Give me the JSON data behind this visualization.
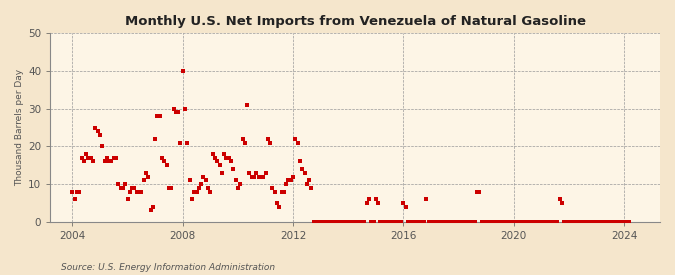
{
  "title": "Monthly U.S. Net Imports from Venezuela of Natural Gasoline",
  "ylabel": "Thousand Barrels per Day",
  "source": "Source: U.S. Energy Information Administration",
  "background_color": "#f5e6cc",
  "plot_background_color": "#fdf5e6",
  "marker_color": "#cc0000",
  "marker_size": 3,
  "ylim": [
    0,
    50
  ],
  "yticks": [
    0,
    10,
    20,
    30,
    40,
    50
  ],
  "xlim": [
    2003.2,
    2025.3
  ],
  "xticks": [
    2004,
    2008,
    2012,
    2016,
    2020,
    2024
  ],
  "data": [
    [
      2004.0,
      8
    ],
    [
      2004.083,
      6
    ],
    [
      2004.167,
      8
    ],
    [
      2004.25,
      8
    ],
    [
      2004.333,
      17
    ],
    [
      2004.417,
      16
    ],
    [
      2004.5,
      18
    ],
    [
      2004.583,
      17
    ],
    [
      2004.667,
      17
    ],
    [
      2004.75,
      16
    ],
    [
      2004.833,
      25
    ],
    [
      2004.917,
      24
    ],
    [
      2005.0,
      23
    ],
    [
      2005.083,
      20
    ],
    [
      2005.167,
      16
    ],
    [
      2005.25,
      17
    ],
    [
      2005.333,
      16
    ],
    [
      2005.417,
      16
    ],
    [
      2005.5,
      17
    ],
    [
      2005.583,
      17
    ],
    [
      2005.667,
      10
    ],
    [
      2005.75,
      9
    ],
    [
      2005.833,
      9
    ],
    [
      2005.917,
      10
    ],
    [
      2006.0,
      6
    ],
    [
      2006.083,
      8
    ],
    [
      2006.167,
      9
    ],
    [
      2006.25,
      9
    ],
    [
      2006.333,
      8
    ],
    [
      2006.417,
      8
    ],
    [
      2006.5,
      8
    ],
    [
      2006.583,
      11
    ],
    [
      2006.667,
      13
    ],
    [
      2006.75,
      12
    ],
    [
      2006.833,
      3
    ],
    [
      2006.917,
      4
    ],
    [
      2007.0,
      22
    ],
    [
      2007.083,
      28
    ],
    [
      2007.167,
      28
    ],
    [
      2007.25,
      17
    ],
    [
      2007.333,
      16
    ],
    [
      2007.417,
      15
    ],
    [
      2007.5,
      9
    ],
    [
      2007.583,
      9
    ],
    [
      2007.667,
      30
    ],
    [
      2007.75,
      29
    ],
    [
      2007.833,
      29
    ],
    [
      2007.917,
      21
    ],
    [
      2008.0,
      40
    ],
    [
      2008.083,
      30
    ],
    [
      2008.167,
      21
    ],
    [
      2008.25,
      11
    ],
    [
      2008.333,
      6
    ],
    [
      2008.417,
      8
    ],
    [
      2008.5,
      8
    ],
    [
      2008.583,
      9
    ],
    [
      2008.667,
      10
    ],
    [
      2008.75,
      12
    ],
    [
      2008.833,
      11
    ],
    [
      2008.917,
      9
    ],
    [
      2009.0,
      8
    ],
    [
      2009.083,
      18
    ],
    [
      2009.167,
      17
    ],
    [
      2009.25,
      16
    ],
    [
      2009.333,
      15
    ],
    [
      2009.417,
      13
    ],
    [
      2009.5,
      18
    ],
    [
      2009.583,
      17
    ],
    [
      2009.667,
      17
    ],
    [
      2009.75,
      16
    ],
    [
      2009.833,
      14
    ],
    [
      2009.917,
      11
    ],
    [
      2010.0,
      9
    ],
    [
      2010.083,
      10
    ],
    [
      2010.167,
      22
    ],
    [
      2010.25,
      21
    ],
    [
      2010.333,
      31
    ],
    [
      2010.417,
      13
    ],
    [
      2010.5,
      12
    ],
    [
      2010.583,
      12
    ],
    [
      2010.667,
      13
    ],
    [
      2010.75,
      12
    ],
    [
      2010.833,
      12
    ],
    [
      2010.917,
      12
    ],
    [
      2011.0,
      13
    ],
    [
      2011.083,
      22
    ],
    [
      2011.167,
      21
    ],
    [
      2011.25,
      9
    ],
    [
      2011.333,
      8
    ],
    [
      2011.417,
      5
    ],
    [
      2011.5,
      4
    ],
    [
      2011.583,
      8
    ],
    [
      2011.667,
      8
    ],
    [
      2011.75,
      10
    ],
    [
      2011.833,
      11
    ],
    [
      2011.917,
      11
    ],
    [
      2012.0,
      12
    ],
    [
      2012.083,
      22
    ],
    [
      2012.167,
      21
    ],
    [
      2012.25,
      16
    ],
    [
      2012.333,
      14
    ],
    [
      2012.417,
      13
    ],
    [
      2012.5,
      10
    ],
    [
      2012.583,
      11
    ],
    [
      2012.667,
      9
    ],
    [
      2012.75,
      0
    ],
    [
      2012.833,
      0
    ],
    [
      2012.917,
      0
    ],
    [
      2013.0,
      0
    ],
    [
      2013.083,
      0
    ],
    [
      2013.167,
      0
    ],
    [
      2013.25,
      0
    ],
    [
      2013.333,
      0
    ],
    [
      2013.417,
      0
    ],
    [
      2013.5,
      0
    ],
    [
      2013.583,
      0
    ],
    [
      2013.667,
      0
    ],
    [
      2013.75,
      0
    ],
    [
      2013.833,
      0
    ],
    [
      2013.917,
      0
    ],
    [
      2014.0,
      0
    ],
    [
      2014.083,
      0
    ],
    [
      2014.167,
      0
    ],
    [
      2014.25,
      0
    ],
    [
      2014.333,
      0
    ],
    [
      2014.417,
      0
    ],
    [
      2014.5,
      0
    ],
    [
      2014.583,
      0
    ],
    [
      2014.667,
      5
    ],
    [
      2014.75,
      6
    ],
    [
      2014.833,
      0
    ],
    [
      2014.917,
      0
    ],
    [
      2015.0,
      6
    ],
    [
      2015.083,
      5
    ],
    [
      2015.167,
      0
    ],
    [
      2015.25,
      0
    ],
    [
      2015.333,
      0
    ],
    [
      2015.417,
      0
    ],
    [
      2015.5,
      0
    ],
    [
      2015.583,
      0
    ],
    [
      2015.667,
      0
    ],
    [
      2015.75,
      0
    ],
    [
      2015.833,
      0
    ],
    [
      2015.917,
      0
    ],
    [
      2016.0,
      5
    ],
    [
      2016.083,
      4
    ],
    [
      2016.167,
      0
    ],
    [
      2016.25,
      0
    ],
    [
      2016.333,
      0
    ],
    [
      2016.417,
      0
    ],
    [
      2016.5,
      0
    ],
    [
      2016.583,
      0
    ],
    [
      2016.667,
      0
    ],
    [
      2016.75,
      0
    ],
    [
      2016.833,
      6
    ],
    [
      2016.917,
      0
    ],
    [
      2017.0,
      0
    ],
    [
      2017.083,
      0
    ],
    [
      2017.167,
      0
    ],
    [
      2017.25,
      0
    ],
    [
      2017.333,
      0
    ],
    [
      2017.417,
      0
    ],
    [
      2017.5,
      0
    ],
    [
      2017.583,
      0
    ],
    [
      2017.667,
      0
    ],
    [
      2017.75,
      0
    ],
    [
      2017.833,
      0
    ],
    [
      2017.917,
      0
    ],
    [
      2018.0,
      0
    ],
    [
      2018.083,
      0
    ],
    [
      2018.167,
      0
    ],
    [
      2018.25,
      0
    ],
    [
      2018.333,
      0
    ],
    [
      2018.417,
      0
    ],
    [
      2018.5,
      0
    ],
    [
      2018.583,
      0
    ],
    [
      2018.667,
      8
    ],
    [
      2018.75,
      8
    ],
    [
      2018.833,
      0
    ],
    [
      2018.917,
      0
    ],
    [
      2019.0,
      0
    ],
    [
      2019.083,
      0
    ],
    [
      2019.167,
      0
    ],
    [
      2019.25,
      0
    ],
    [
      2019.333,
      0
    ],
    [
      2019.417,
      0
    ],
    [
      2019.5,
      0
    ],
    [
      2019.583,
      0
    ],
    [
      2019.667,
      0
    ],
    [
      2019.75,
      0
    ],
    [
      2019.833,
      0
    ],
    [
      2019.917,
      0
    ],
    [
      2020.0,
      0
    ],
    [
      2020.083,
      0
    ],
    [
      2020.167,
      0
    ],
    [
      2020.25,
      0
    ],
    [
      2020.333,
      0
    ],
    [
      2020.417,
      0
    ],
    [
      2020.5,
      0
    ],
    [
      2020.583,
      0
    ],
    [
      2020.667,
      0
    ],
    [
      2020.75,
      0
    ],
    [
      2020.833,
      0
    ],
    [
      2020.917,
      0
    ],
    [
      2021.0,
      0
    ],
    [
      2021.083,
      0
    ],
    [
      2021.167,
      0
    ],
    [
      2021.25,
      0
    ],
    [
      2021.333,
      0
    ],
    [
      2021.417,
      0
    ],
    [
      2021.5,
      0
    ],
    [
      2021.583,
      0
    ],
    [
      2021.667,
      6
    ],
    [
      2021.75,
      5
    ],
    [
      2021.833,
      0
    ],
    [
      2021.917,
      0
    ],
    [
      2022.0,
      0
    ],
    [
      2022.083,
      0
    ],
    [
      2022.167,
      0
    ],
    [
      2022.25,
      0
    ],
    [
      2022.333,
      0
    ],
    [
      2022.417,
      0
    ],
    [
      2022.5,
      0
    ],
    [
      2022.583,
      0
    ],
    [
      2022.667,
      0
    ],
    [
      2022.75,
      0
    ],
    [
      2022.833,
      0
    ],
    [
      2022.917,
      0
    ],
    [
      2023.0,
      0
    ],
    [
      2023.083,
      0
    ],
    [
      2023.167,
      0
    ],
    [
      2023.25,
      0
    ],
    [
      2023.333,
      0
    ],
    [
      2023.417,
      0
    ],
    [
      2023.5,
      0
    ],
    [
      2023.583,
      0
    ],
    [
      2023.667,
      0
    ],
    [
      2023.75,
      0
    ],
    [
      2023.833,
      0
    ],
    [
      2023.917,
      0
    ],
    [
      2024.0,
      0
    ],
    [
      2024.083,
      0
    ],
    [
      2024.167,
      0
    ]
  ]
}
